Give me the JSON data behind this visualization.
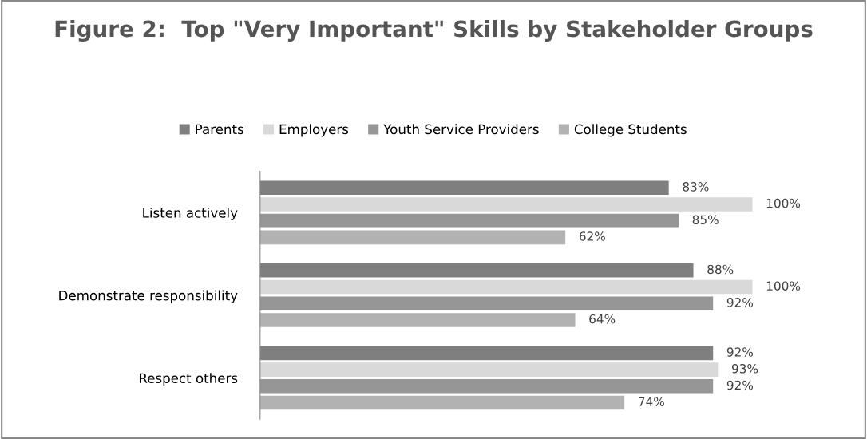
{
  "chart_data": {
    "type": "bar",
    "orientation": "horizontal",
    "title": "Figure 2:  Top \"Very Important\" Skills by Stakeholder Groups",
    "categories": [
      "Listen actively",
      "Demonstrate responsibility",
      "Respect others"
    ],
    "series": [
      {
        "name": "Parents",
        "color": "#7f7f7f",
        "values": [
          83,
          88,
          92
        ],
        "value_labels": [
          "83%",
          "88%",
          "92%"
        ]
      },
      {
        "name": "Employers",
        "color": "#d9d9d9",
        "values": [
          100,
          100,
          93
        ],
        "value_labels": [
          "100%",
          "100%",
          "93%"
        ]
      },
      {
        "name": "Youth Service Providers",
        "color": "#969696",
        "values": [
          85,
          92,
          92
        ],
        "value_labels": [
          "85%",
          "92%",
          "92%"
        ]
      },
      {
        "name": "College Students",
        "color": "#b2b2b2",
        "values": [
          62,
          64,
          74
        ],
        "value_labels": [
          "62%",
          "64%",
          "74%"
        ]
      }
    ],
    "legend": "top",
    "grid": false,
    "tick_labels": "y"
  }
}
